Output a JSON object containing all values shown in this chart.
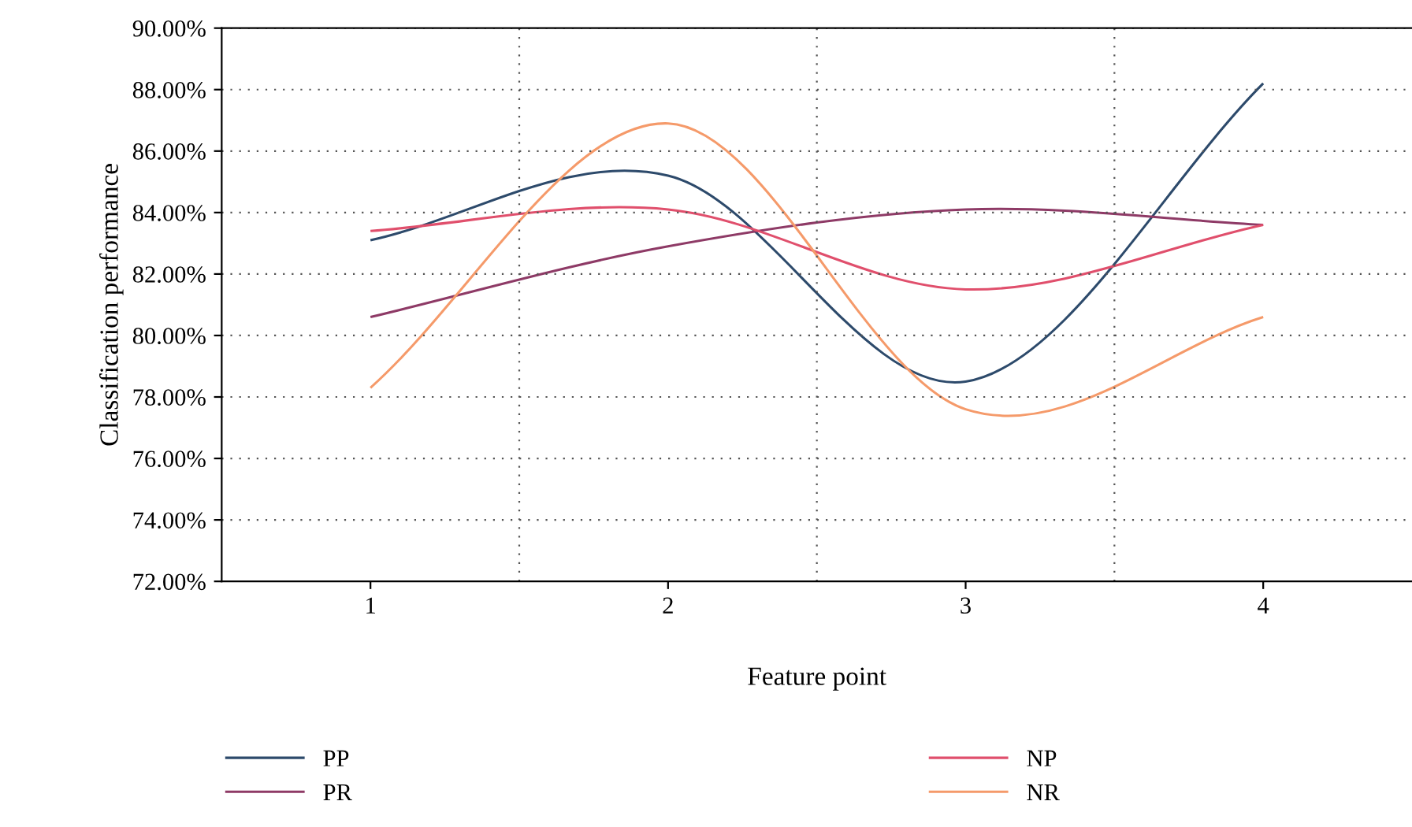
{
  "chart_data": {
    "type": "line",
    "xlabel": "Feature point",
    "ylabel": "Classification performance",
    "categories": [
      "1",
      "2",
      "3",
      "4"
    ],
    "series": [
      {
        "name": "PP",
        "color": "#2d4a6b",
        "values": [
          83.1,
          85.2,
          78.5,
          88.2
        ]
      },
      {
        "name": "PR",
        "color": "#8e3a66",
        "values": [
          80.6,
          82.9,
          84.1,
          83.6
        ]
      },
      {
        "name": "NP",
        "color": "#e04f6c",
        "values": [
          83.4,
          84.1,
          81.5,
          83.6
        ]
      },
      {
        "name": "NR",
        "color": "#f59a6a",
        "values": [
          78.3,
          86.9,
          77.6,
          80.6
        ]
      }
    ],
    "ylim": [
      72,
      90
    ],
    "yticks": [
      {
        "value": 72,
        "label": "72.00%"
      },
      {
        "value": 74,
        "label": "74.00%"
      },
      {
        "value": 76,
        "label": "76.00%"
      },
      {
        "value": 78,
        "label": "78.00%"
      },
      {
        "value": 80,
        "label": "80.00%"
      },
      {
        "value": 82,
        "label": "82.00%"
      },
      {
        "value": 84,
        "label": "84.00%"
      },
      {
        "value": 86,
        "label": "86.00%"
      },
      {
        "value": 88,
        "label": "88.00%"
      },
      {
        "value": 90,
        "label": "90.00%"
      }
    ],
    "grid": true,
    "legend": "bottom",
    "line_style": "solid"
  }
}
